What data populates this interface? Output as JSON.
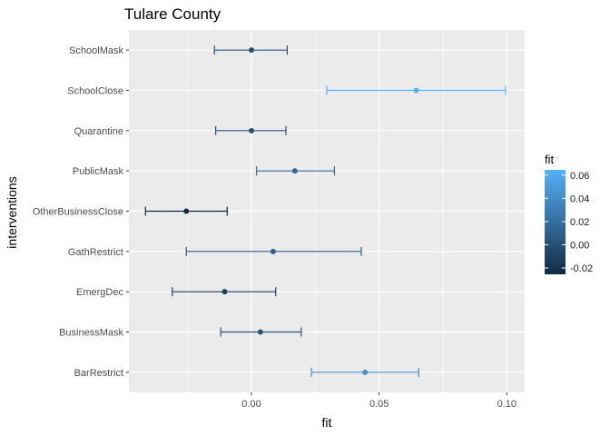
{
  "chart_data": {
    "type": "errorbar",
    "title": "Tulare County",
    "xlabel": "fit",
    "ylabel": "interventions",
    "categories": [
      "SchoolMask",
      "SchoolClose",
      "Quarantine",
      "PublicMask",
      "OtherBusinessClose",
      "GathRestrict",
      "EmergDec",
      "BusinessMask",
      "BarRestrict"
    ],
    "fit": [
      0.0,
      0.0645,
      0.0,
      0.017,
      -0.0255,
      0.0085,
      -0.0105,
      0.0035,
      0.0445
    ],
    "lower": [
      -0.0145,
      0.0295,
      -0.014,
      0.002,
      -0.0415,
      -0.0255,
      -0.031,
      -0.012,
      0.0235
    ],
    "upper": [
      0.014,
      0.0995,
      0.0135,
      0.0325,
      -0.0095,
      0.043,
      0.0095,
      0.0195,
      0.0655
    ],
    "xlim": [
      -0.048,
      0.107
    ],
    "xticks": [
      0.0,
      0.05,
      0.1
    ],
    "xtick_labels": [
      "0.00",
      "0.05",
      "0.10"
    ],
    "grid": true,
    "legend": {
      "title": "fit",
      "placement": "right",
      "range": [
        -0.0255,
        0.0645
      ],
      "ticks": [
        -0.02,
        0.0,
        0.02,
        0.04,
        0.06
      ],
      "tick_labels": [
        "-0.02",
        "0.00",
        "0.02",
        "0.04",
        "0.06"
      ],
      "color_low": "#132B43",
      "color_high": "#56B1F7"
    },
    "panel_color": "#EBEBEB",
    "grid_color": "#FFFFFF"
  }
}
